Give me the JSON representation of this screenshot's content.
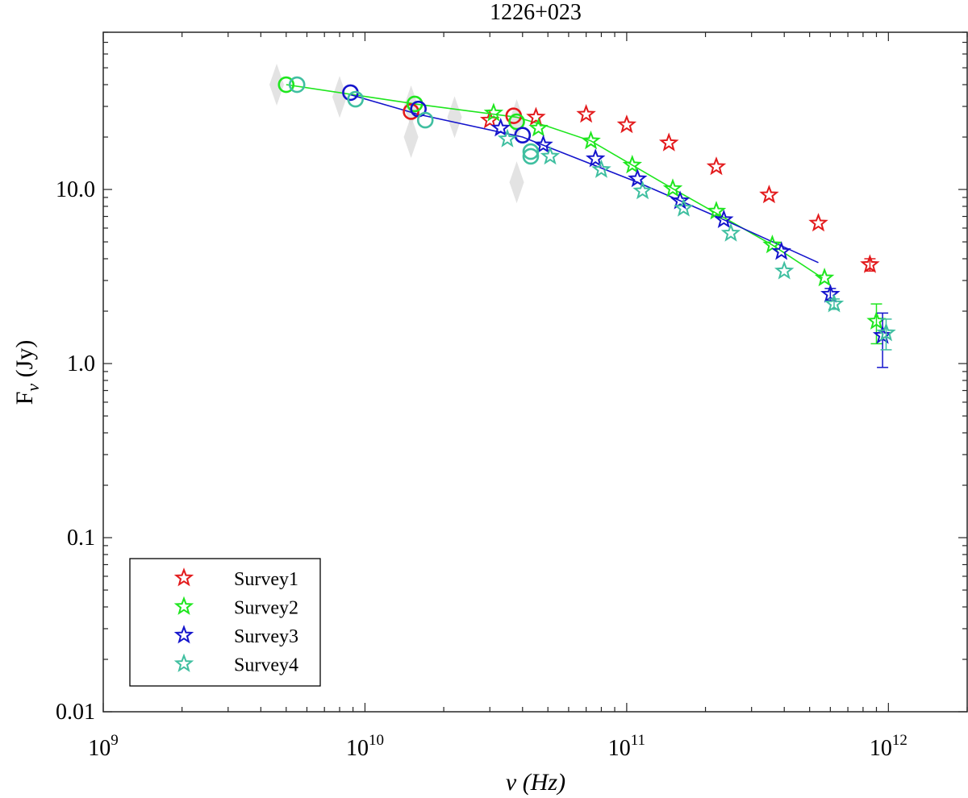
{
  "chart_data": {
    "type": "scatter",
    "title": "1226+023",
    "xlabel": "ν (Hz)",
    "ylabel": "F_ν (Jy)",
    "ylabel_main": "F",
    "ylabel_sub": "ν",
    "ylabel_unit": "(Jy)",
    "xscale": "log",
    "yscale": "log",
    "xlim": [
      1000000000.0,
      2000000000000.0
    ],
    "ylim": [
      0.01,
      80
    ],
    "legend_position": "bottom-left",
    "x_ticks": [
      {
        "value": 1000000000.0,
        "base": "10",
        "exp": "9"
      },
      {
        "value": 10000000000.0,
        "base": "10",
        "exp": "10"
      },
      {
        "value": 100000000000.0,
        "base": "10",
        "exp": "11"
      },
      {
        "value": 1000000000000.0,
        "base": "10",
        "exp": "12"
      }
    ],
    "y_ticks": [
      {
        "value": 0.01,
        "label": "0.01"
      },
      {
        "value": 0.1,
        "label": "0.1"
      },
      {
        "value": 1,
        "label": "1.0"
      },
      {
        "value": 10,
        "label": "10.0"
      }
    ],
    "series": [
      {
        "name": "Survey1",
        "color": "#e31a1c",
        "stars": [
          {
            "x": 30000000000.0,
            "y": 25.0
          },
          {
            "x": 45000000000.0,
            "y": 26.0
          },
          {
            "x": 70000000000.0,
            "y": 27.0
          },
          {
            "x": 100000000000.0,
            "y": 23.5
          },
          {
            "x": 145000000000.0,
            "y": 18.5
          },
          {
            "x": 220000000000.0,
            "y": 13.5
          },
          {
            "x": 350000000000.0,
            "y": 9.3
          },
          {
            "x": 540000000000.0,
            "y": 6.4
          },
          {
            "x": 850000000000.0,
            "y": 3.7,
            "err": 0.3
          }
        ],
        "circles": [
          {
            "x": 15000000000.0,
            "y": 28.0
          },
          {
            "x": 37000000000.0,
            "y": 26.5
          }
        ],
        "fit": []
      },
      {
        "name": "Survey2",
        "color": "#1ee61e",
        "stars": [
          {
            "x": 31000000000.0,
            "y": 27.5
          },
          {
            "x": 46000000000.0,
            "y": 22.5
          },
          {
            "x": 73000000000.0,
            "y": 19.0
          },
          {
            "x": 105000000000.0,
            "y": 13.8
          },
          {
            "x": 150000000000.0,
            "y": 10.1
          },
          {
            "x": 220000000000.0,
            "y": 7.5
          },
          {
            "x": 360000000000.0,
            "y": 4.8
          },
          {
            "x": 570000000000.0,
            "y": 3.1
          },
          {
            "x": 900000000000.0,
            "y": 1.75,
            "err": 0.45
          }
        ],
        "circles": [
          {
            "x": 5000000000.0,
            "y": 40.0
          },
          {
            "x": 15500000000.0,
            "y": 31.0
          },
          {
            "x": 38000000000.0,
            "y": 24.5
          }
        ],
        "fit": [
          {
            "x": 5000000000.0,
            "y": 40.0
          },
          {
            "x": 15500000000.0,
            "y": 31.0
          },
          {
            "x": 38000000000.0,
            "y": 26.0
          },
          {
            "x": 50000000000.0,
            "y": 23.0
          },
          {
            "x": 73000000000.0,
            "y": 19.0
          },
          {
            "x": 105000000000.0,
            "y": 13.8
          },
          {
            "x": 150000000000.0,
            "y": 10.1
          },
          {
            "x": 220000000000.0,
            "y": 7.3
          },
          {
            "x": 360000000000.0,
            "y": 4.8
          },
          {
            "x": 560000000000.0,
            "y": 3.1
          }
        ]
      },
      {
        "name": "Survey3",
        "color": "#1414cc",
        "stars": [
          {
            "x": 33000000000.0,
            "y": 22.5
          },
          {
            "x": 48000000000.0,
            "y": 18.0
          },
          {
            "x": 76000000000.0,
            "y": 15.0
          },
          {
            "x": 110000000000.0,
            "y": 11.5
          },
          {
            "x": 160000000000.0,
            "y": 8.6
          },
          {
            "x": 235000000000.0,
            "y": 6.7
          },
          {
            "x": 390000000000.0,
            "y": 4.4
          },
          {
            "x": 600000000000.0,
            "y": 2.5,
            "err": 0.2
          },
          {
            "x": 950000000000.0,
            "y": 1.45,
            "err": 0.5
          }
        ],
        "circles": [
          {
            "x": 8800000000.0,
            "y": 36.0
          },
          {
            "x": 16000000000.0,
            "y": 29.0
          },
          {
            "x": 40000000000.0,
            "y": 20.5
          }
        ],
        "fit": [
          {
            "x": 8800000000.0,
            "y": 35.0
          },
          {
            "x": 16000000000.0,
            "y": 27.0
          },
          {
            "x": 40000000000.0,
            "y": 20.0
          },
          {
            "x": 110000000000.0,
            "y": 11.0
          },
          {
            "x": 230000000000.0,
            "y": 6.8
          },
          {
            "x": 540000000000.0,
            "y": 3.8
          }
        ]
      },
      {
        "name": "Survey4",
        "color": "#3fbfa0",
        "stars": [
          {
            "x": 35000000000.0,
            "y": 19.5
          },
          {
            "x": 51000000000.0,
            "y": 15.5
          },
          {
            "x": 80000000000.0,
            "y": 13.0
          },
          {
            "x": 115000000000.0,
            "y": 9.8
          },
          {
            "x": 165000000000.0,
            "y": 7.8
          },
          {
            "x": 250000000000.0,
            "y": 5.6
          },
          {
            "x": 400000000000.0,
            "y": 3.4
          },
          {
            "x": 620000000000.0,
            "y": 2.2,
            "err": 0.15
          },
          {
            "x": 980000000000.0,
            "y": 1.5,
            "err": 0.3
          }
        ],
        "circles": [
          {
            "x": 5500000000.0,
            "y": 40.0
          },
          {
            "x": 9200000000.0,
            "y": 33.0
          },
          {
            "x": 17000000000.0,
            "y": 25.0
          },
          {
            "x": 43000000000.0,
            "y": 16.5
          },
          {
            "x": 43000000000.0,
            "y": 15.5
          }
        ],
        "fit": []
      }
    ],
    "grey_markers": [
      {
        "x": 4600000000.0,
        "y": 40.0
      },
      {
        "x": 8000000000.0,
        "y": 34.0
      },
      {
        "x": 15000000000.0,
        "y": 30.0
      },
      {
        "x": 15000000000.0,
        "y": 20.0
      },
      {
        "x": 22000000000.0,
        "y": 26.0
      },
      {
        "x": 38000000000.0,
        "y": 25.0
      },
      {
        "x": 38000000000.0,
        "y": 11.0
      }
    ]
  }
}
